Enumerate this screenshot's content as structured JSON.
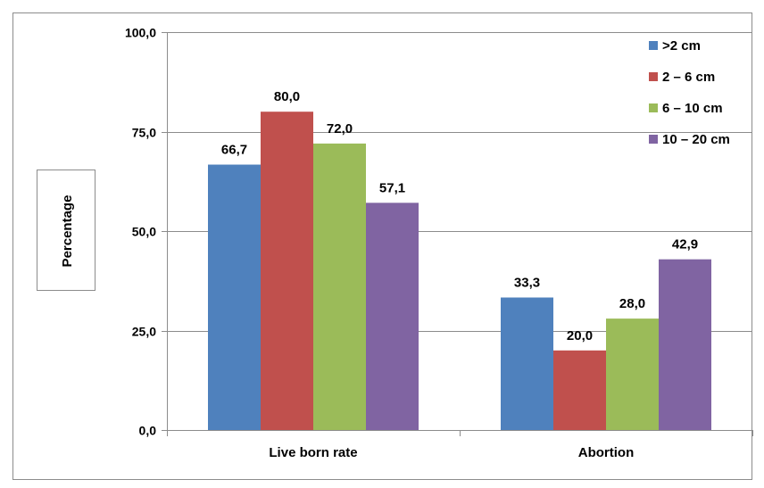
{
  "chart_data": {
    "type": "bar",
    "categories": [
      "Live born rate",
      "Abortion"
    ],
    "series": [
      {
        "name": ">2 cm",
        "values": [
          66.7,
          33.3
        ],
        "color": "#4F81BD"
      },
      {
        "name": "2 – 6 cm",
        "values": [
          80.0,
          20.0
        ],
        "color": "#C0504D"
      },
      {
        "name": "6 – 10 cm",
        "values": [
          72.0,
          28.0
        ],
        "color": "#9BBB59"
      },
      {
        "name": "10 – 20 cm",
        "values": [
          57.1,
          42.9
        ],
        "color": "#8064A2"
      }
    ],
    "data_labels": [
      [
        "66,7",
        "33,3"
      ],
      [
        "80,0",
        "20,0"
      ],
      [
        "72,0",
        "28,0"
      ],
      [
        "57,1",
        "42,9"
      ]
    ],
    "ylabel": "Percentage",
    "yticks": [
      0,
      25,
      50,
      75,
      100
    ],
    "ytick_labels": [
      "0,0",
      "25,0",
      "50,0",
      "75,0",
      "100,0"
    ],
    "ylim": [
      0,
      100
    ],
    "grid": true,
    "legend": "top-right"
  }
}
